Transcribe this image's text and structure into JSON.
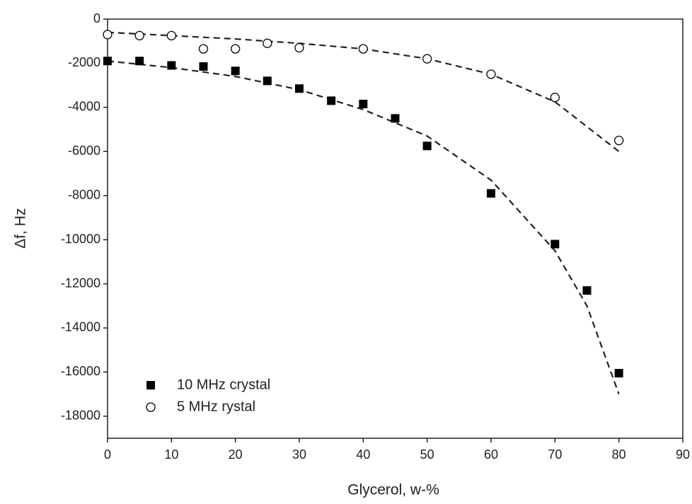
{
  "chart_data": {
    "type": "scatter",
    "xlabel": "Glycerol, w-%",
    "ylabel": "Δf, Hz",
    "xlim": [
      0,
      90
    ],
    "ylim": [
      -19000,
      0
    ],
    "xticks": [
      0,
      10,
      20,
      30,
      40,
      50,
      60,
      70,
      80,
      90
    ],
    "yticks": [
      0,
      -2000,
      -4000,
      -6000,
      -8000,
      -10000,
      -12000,
      -14000,
      -16000,
      -18000
    ],
    "legend": "lower left",
    "series": [
      {
        "name": "10 MHz crystal",
        "color": "#000000",
        "marker": "square",
        "x": [
          0,
          5,
          10,
          15,
          20,
          25,
          30,
          35,
          40,
          45,
          50,
          60,
          70,
          75,
          80
        ],
        "values": [
          -1900,
          -1900,
          -2100,
          -2150,
          -2350,
          -2800,
          -3150,
          -3700,
          -3850,
          -4500,
          -5750,
          -7900,
          -10200,
          -12300,
          -16050
        ]
      },
      {
        "name": "5 MHz rystal",
        "color": "#000000",
        "marker": "open-circle",
        "x": [
          0,
          5,
          10,
          15,
          20,
          25,
          30,
          40,
          50,
          60,
          70,
          80
        ],
        "values": [
          -700,
          -750,
          -750,
          -1350,
          -1350,
          -1100,
          -1300,
          -1350,
          -1800,
          -2500,
          -3550,
          -5500
        ]
      }
    ],
    "fit_lines": [
      {
        "color": "#222222",
        "x": [
          0,
          10,
          20,
          30,
          40,
          50,
          60,
          70,
          75,
          80
        ],
        "values": [
          -1900,
          -2200,
          -2600,
          -3200,
          -4100,
          -5300,
          -7300,
          -10500,
          -13000,
          -17000
        ]
      },
      {
        "color": "#222222",
        "x": [
          0,
          10,
          20,
          30,
          40,
          50,
          60,
          70,
          80
        ],
        "values": [
          -600,
          -750,
          -900,
          -1100,
          -1350,
          -1800,
          -2500,
          -3750,
          -6000
        ]
      }
    ]
  }
}
